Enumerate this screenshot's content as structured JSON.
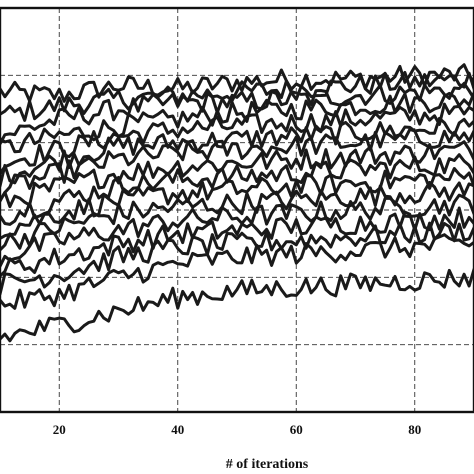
{
  "chart_data": {
    "type": "line",
    "title": "",
    "xlabel": "# of iterations",
    "ylabel": "",
    "x_ticks": [
      20,
      40,
      60,
      80
    ],
    "xlim": [
      10,
      90
    ],
    "ylim": [
      0,
      6
    ],
    "y_grid_lines": [
      1,
      2,
      3,
      4,
      5
    ],
    "grid": true,
    "line_color": "#1a1a1a",
    "x": [
      10,
      20,
      30,
      40,
      50,
      60,
      70,
      80,
      90
    ],
    "series": [
      {
        "values": [
          4.75,
          4.7,
          4.85,
          4.8,
          4.9,
          4.95,
          4.95,
          5.0,
          5.0
        ]
      },
      {
        "values": [
          4.4,
          4.55,
          4.65,
          4.7,
          4.75,
          4.8,
          4.85,
          4.9,
          4.95
        ]
      },
      {
        "values": [
          4.1,
          4.35,
          4.5,
          4.6,
          4.6,
          4.65,
          4.7,
          4.75,
          4.8
        ]
      },
      {
        "values": [
          3.9,
          4.1,
          4.25,
          4.35,
          4.45,
          4.5,
          4.55,
          4.6,
          4.65
        ]
      },
      {
        "values": [
          3.7,
          3.9,
          4.1,
          4.2,
          4.25,
          4.3,
          4.35,
          4.4,
          4.45
        ]
      },
      {
        "values": [
          3.5,
          3.75,
          3.95,
          4.0,
          4.05,
          4.1,
          4.15,
          4.2,
          4.25
        ]
      },
      {
        "values": [
          3.3,
          3.55,
          3.75,
          3.85,
          3.9,
          3.95,
          4.0,
          4.05,
          4.1
        ]
      },
      {
        "values": [
          3.1,
          3.35,
          3.55,
          3.65,
          3.7,
          3.75,
          3.8,
          3.85,
          3.9
        ]
      },
      {
        "values": [
          2.9,
          3.15,
          3.35,
          3.45,
          3.5,
          3.55,
          3.6,
          3.65,
          3.7
        ]
      },
      {
        "values": [
          2.7,
          2.95,
          3.15,
          3.25,
          3.3,
          3.35,
          3.4,
          3.45,
          3.5
        ]
      },
      {
        "values": [
          2.5,
          2.75,
          2.95,
          3.05,
          3.1,
          3.15,
          3.2,
          3.25,
          3.3
        ]
      },
      {
        "values": [
          2.3,
          2.55,
          2.7,
          2.85,
          2.9,
          2.95,
          3.0,
          3.05,
          3.1
        ]
      },
      {
        "values": [
          2.1,
          2.3,
          2.5,
          2.65,
          2.7,
          2.75,
          2.8,
          2.85,
          2.9
        ]
      },
      {
        "values": [
          1.9,
          2.05,
          2.3,
          2.45,
          2.5,
          2.55,
          2.6,
          2.65,
          2.7
        ]
      },
      {
        "values": [
          1.6,
          1.75,
          2.0,
          2.2,
          2.3,
          2.35,
          2.4,
          2.45,
          2.5
        ]
      },
      {
        "values": [
          1.1,
          1.3,
          1.5,
          1.7,
          1.8,
          1.85,
          1.9,
          1.95,
          2.0
        ]
      }
    ]
  }
}
